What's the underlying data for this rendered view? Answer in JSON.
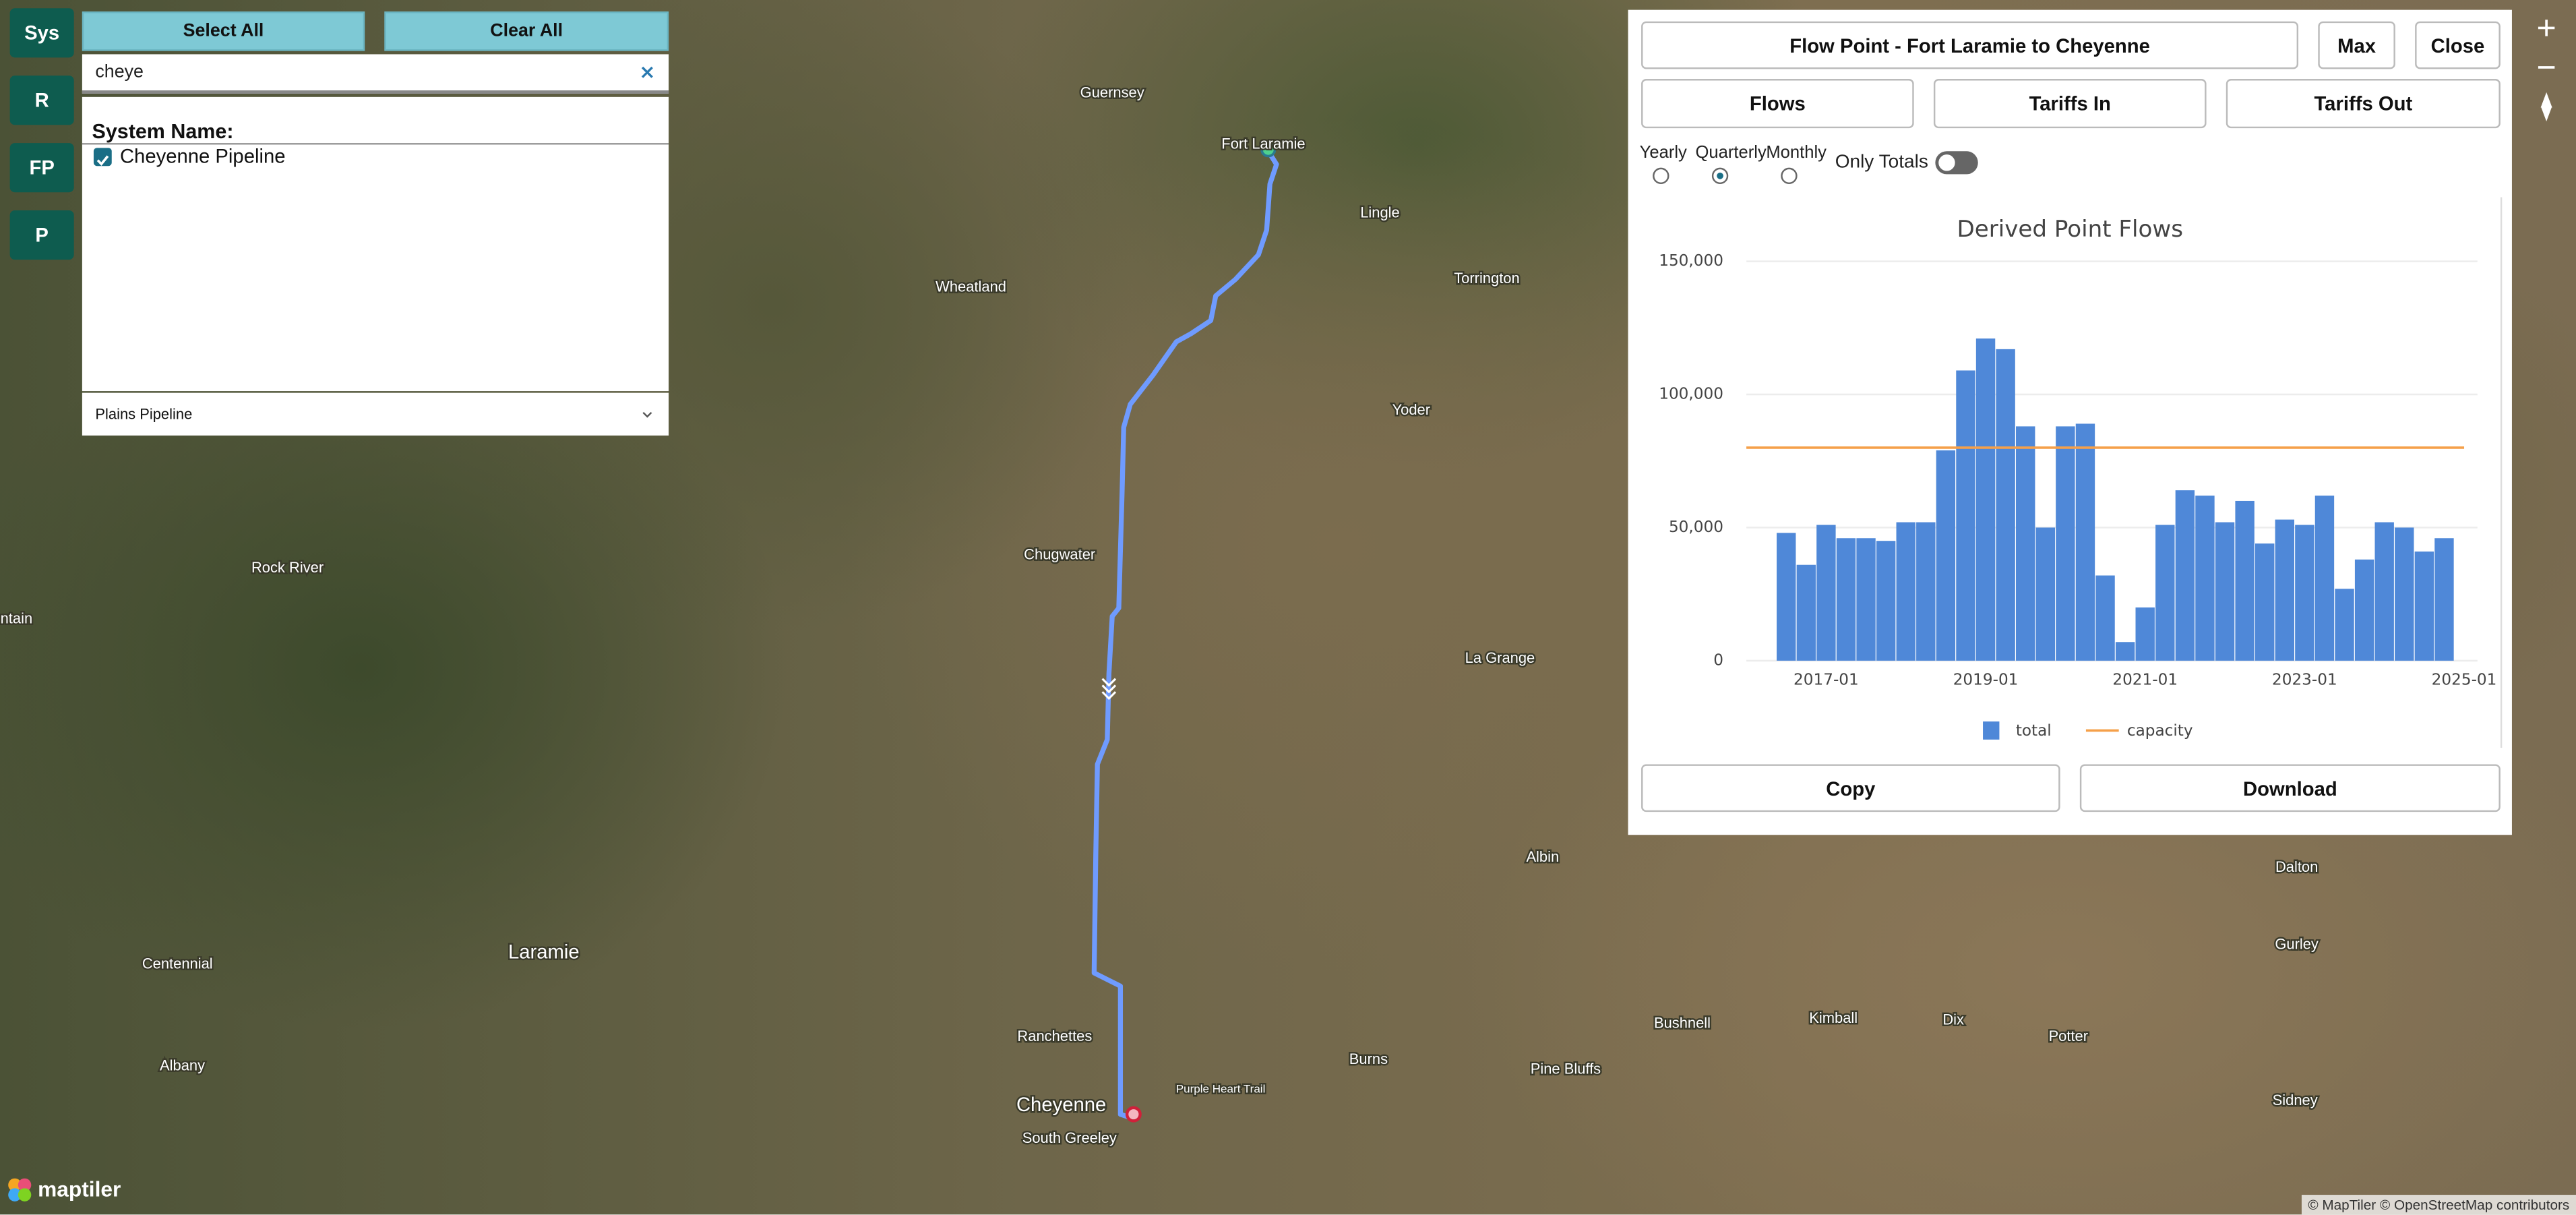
{
  "sidebar": {
    "buttons": [
      "Sys",
      "R",
      "FP",
      "P"
    ]
  },
  "filter_panel": {
    "select_all": "Select All",
    "clear_all": "Clear All",
    "search": "cheye",
    "group_title": "System Name:",
    "items": [
      {
        "label": "Cheyenne Pipeline",
        "checked": true
      }
    ],
    "dropdown": "Plains Pipeline"
  },
  "flow_panel": {
    "title": "Flow Point - Fort Laramie to Cheyenne",
    "max": "Max",
    "close": "Close",
    "tabs": [
      "Flows",
      "Tariffs In",
      "Tariffs Out"
    ],
    "radios": [
      {
        "label": "Yearly",
        "checked": false
      },
      {
        "label": "Quarterly",
        "checked": true
      },
      {
        "label": "Monthly",
        "checked": false
      }
    ],
    "toggle": {
      "label": "Only Totals",
      "on": false
    },
    "copy": "Copy",
    "download": "Download"
  },
  "chart_data": {
    "type": "bar",
    "title": "Derived Point Flows",
    "x": [
      "2016-07",
      "2016-10",
      "2017-01",
      "2017-04",
      "2017-07",
      "2017-10",
      "2018-01",
      "2018-04",
      "2018-07",
      "2018-10",
      "2019-01",
      "2019-04",
      "2019-07",
      "2019-10",
      "2020-01",
      "2020-04",
      "2020-07",
      "2020-10",
      "2021-01",
      "2021-04",
      "2021-07",
      "2021-10",
      "2022-01",
      "2022-04",
      "2022-07",
      "2022-10",
      "2023-01",
      "2023-04",
      "2023-07",
      "2023-10",
      "2024-01",
      "2024-04",
      "2024-07",
      "2024-10"
    ],
    "series": [
      {
        "name": "total",
        "type": "bar",
        "color": "#4f88d8",
        "values": [
          48000,
          36000,
          51000,
          46000,
          46000,
          45000,
          52000,
          52000,
          79000,
          109000,
          121000,
          117000,
          88000,
          50000,
          88000,
          89000,
          32000,
          7000,
          20000,
          51000,
          64000,
          62000,
          52000,
          60000,
          44000,
          53000,
          51000,
          62000,
          27000,
          38000,
          52000,
          50000,
          41000,
          46000
        ]
      },
      {
        "name": "capacity",
        "type": "line",
        "color": "#f5a04a",
        "x": [
          "2016-01",
          "2025-01"
        ],
        "values": [
          80000,
          80000
        ]
      }
    ],
    "xlim": [
      "2016-01",
      "2025-03"
    ],
    "xticks": [
      "2017-01",
      "2019-01",
      "2021-01",
      "2023-01",
      "2025-01"
    ],
    "ylim": [
      0,
      150000
    ],
    "yticks": [
      0,
      {
        "value": 50000,
        "label": "50,000"
      },
      {
        "value": 100000,
        "label": "100,000"
      },
      {
        "value": 150000,
        "label": "150,000"
      }
    ],
    "grid": true
  },
  "map": {
    "labels": [
      "Guernsey",
      "Fort Laramie",
      "Lingle",
      "Torrington",
      "Wheatland",
      "Yoder",
      "Chugwater",
      "Rock River",
      "ntain",
      "La Grange",
      "Albin",
      "Dalton",
      "Laramie",
      "Centennial",
      "Gurley",
      "Albany",
      "Ranchettes",
      "Burns",
      "Bushnell",
      "Kimball",
      "Dix",
      "Potter",
      "Pine Bluffs",
      "Cheyenne",
      "South Greeley",
      "Purple Heart Trail",
      "Sidney"
    ],
    "logo": "maptiler",
    "attribution": "© MapTiler © OpenStreetMap contributors"
  }
}
